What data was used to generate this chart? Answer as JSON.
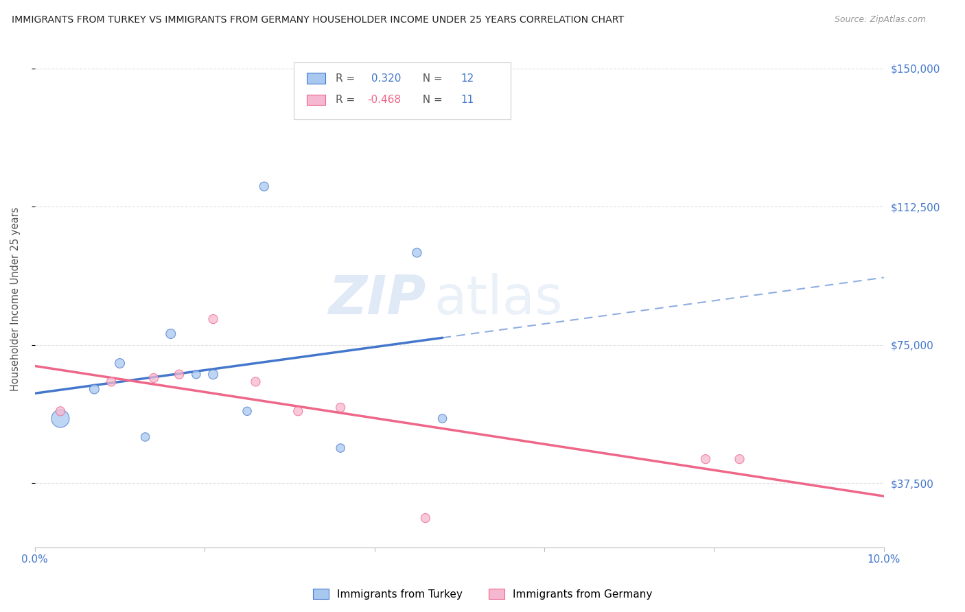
{
  "title": "IMMIGRANTS FROM TURKEY VS IMMIGRANTS FROM GERMANY HOUSEHOLDER INCOME UNDER 25 YEARS CORRELATION CHART",
  "source": "Source: ZipAtlas.com",
  "ylabel": "Householder Income Under 25 years",
  "xlim": [
    0.0,
    0.1
  ],
  "ylim": [
    20000,
    155000
  ],
  "yticks": [
    37500,
    75000,
    112500,
    150000
  ],
  "ytick_labels": [
    "$37,500",
    "$75,000",
    "$112,500",
    "$150,000"
  ],
  "xticks": [
    0.0,
    0.02,
    0.04,
    0.06,
    0.08,
    0.1
  ],
  "xtick_labels": [
    "0.0%",
    "",
    "",
    "",
    "",
    "10.0%"
  ],
  "turkey_x": [
    0.003,
    0.007,
    0.01,
    0.013,
    0.016,
    0.019,
    0.021,
    0.025,
    0.027,
    0.036,
    0.045,
    0.048
  ],
  "turkey_y": [
    55000,
    63000,
    70000,
    50000,
    78000,
    67000,
    67000,
    57000,
    118000,
    47000,
    100000,
    55000
  ],
  "turkey_sizes": [
    350,
    100,
    100,
    80,
    100,
    80,
    100,
    80,
    90,
    80,
    90,
    80
  ],
  "germany_x": [
    0.003,
    0.009,
    0.014,
    0.017,
    0.021,
    0.026,
    0.031,
    0.036,
    0.046,
    0.079,
    0.083
  ],
  "germany_y": [
    57000,
    65000,
    66000,
    67000,
    82000,
    65000,
    57000,
    58000,
    28000,
    44000,
    44000
  ],
  "germany_sizes": [
    90,
    90,
    90,
    90,
    90,
    90,
    90,
    90,
    90,
    90,
    90
  ],
  "turkey_R": 0.32,
  "turkey_N": 12,
  "germany_R": -0.468,
  "germany_N": 11,
  "turkey_color": "#A8C8F0",
  "germany_color": "#F5B8D0",
  "turkey_line_color": "#4477CC",
  "germany_line_color": "#EE6688",
  "background_color": "#FFFFFF",
  "grid_color": "#DDDDDD",
  "axis_label_color": "#4477CC",
  "watermark_color": "#C8D8F0",
  "legend_label_turkey": "Immigrants from Turkey",
  "legend_label_germany": "Immigrants from Germany"
}
